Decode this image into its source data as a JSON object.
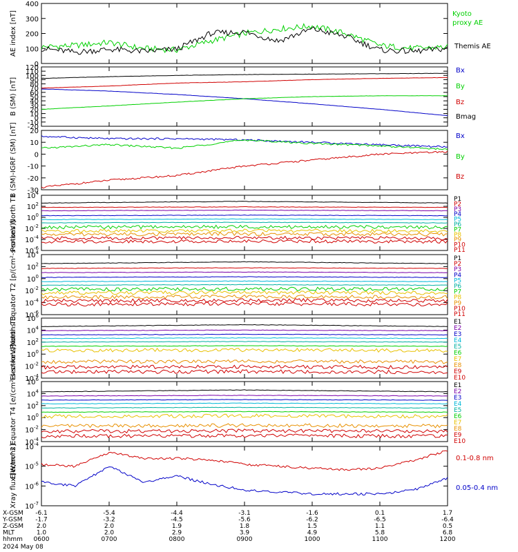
{
  "footer": {
    "date_label": "2024 May 08",
    "rows": [
      {
        "label": "X-GSM",
        "values": [
          "-6.1",
          "-5.4",
          "-4.4",
          "-3.1",
          "-1.6",
          "0.1",
          "1.7"
        ]
      },
      {
        "label": "Y-GSM",
        "values": [
          "-1.7",
          "-3.2",
          "-4.5",
          "-5.6",
          "-6.2",
          "-6.5",
          "-6.4"
        ]
      },
      {
        "label": "Z-GSM",
        "values": [
          "2.0",
          "2.0",
          "1.9",
          "1.8",
          "1.5",
          "1.1",
          "0.5"
        ]
      },
      {
        "label": "MLT",
        "values": [
          "1.0",
          "2.0",
          "2.9",
          "3.9",
          "4.9",
          "5.8",
          "6.8"
        ]
      },
      {
        "label": "hhmm",
        "values": [
          "0600",
          "0700",
          "0800",
          "0900",
          "1000",
          "1100",
          "1200"
        ]
      }
    ]
  },
  "chart_data": [
    {
      "type": "line",
      "ylabel": "AE index [nT]",
      "ylim": [
        0,
        400
      ],
      "ticks": [
        0,
        100,
        200,
        300,
        400
      ],
      "scale": "linear",
      "legend": [
        "Kyoto proxy AE",
        "Themis AE"
      ],
      "x": [
        "06:00",
        "06:30",
        "07:00",
        "07:30",
        "08:00",
        "08:30",
        "09:00",
        "09:30",
        "10:00",
        "10:30",
        "11:00",
        "11:30",
        "12:00"
      ],
      "series": [
        {
          "name": "Kyoto proxy AE",
          "color": "#00d000",
          "values": [
            110,
            120,
            140,
            100,
            90,
            150,
            200,
            230,
            250,
            200,
            120,
            100,
            110
          ]
        },
        {
          "name": "Themis AE",
          "color": "#000000",
          "values": [
            100,
            75,
            95,
            80,
            95,
            200,
            210,
            150,
            230,
            180,
            90,
            80,
            100
          ]
        }
      ]
    },
    {
      "type": "line",
      "ylabel": "B (SM) [nT]",
      "ylim": [
        -20,
        120
      ],
      "ticks": [
        -20,
        -10,
        0,
        10,
        20,
        30,
        40,
        50,
        60,
        70,
        80,
        90,
        100,
        110,
        120
      ],
      "scale": "linear",
      "legend": [
        "Bx",
        "By",
        "Bz",
        "Bmag"
      ],
      "x": [
        "06:00",
        "07:00",
        "08:00",
        "09:00",
        "10:00",
        "11:00",
        "12:00"
      ],
      "series": [
        {
          "name": "Bx",
          "color": "#0000c8",
          "values": [
            68,
            63,
            55,
            45,
            33,
            20,
            5
          ]
        },
        {
          "name": "By",
          "color": "#00d000",
          "values": [
            20,
            28,
            37,
            45,
            50,
            52,
            52
          ]
        },
        {
          "name": "Bz",
          "color": "#d00000",
          "values": [
            70,
            75,
            82,
            85,
            90,
            93,
            95
          ]
        },
        {
          "name": "Bmag",
          "color": "#000000",
          "values": [
            93,
            97,
            100,
            102,
            103,
            104,
            105
          ]
        }
      ]
    },
    {
      "type": "line",
      "ylabel": "B (SM)-IGRF (SM) [nT]",
      "ylim": [
        -30,
        20
      ],
      "ticks": [
        -30,
        -20,
        -10,
        0,
        10,
        20
      ],
      "scale": "linear",
      "legend": [
        "Bx",
        "By",
        "Bz"
      ],
      "x": [
        "06:00",
        "07:00",
        "08:00",
        "09:00",
        "10:00",
        "11:00",
        "12:00"
      ],
      "series": [
        {
          "name": "Bx",
          "color": "#0000c8",
          "values": [
            15,
            13,
            13,
            12,
            10,
            8,
            6
          ]
        },
        {
          "name": "By",
          "color": "#00d000",
          "values": [
            5,
            8,
            5,
            12,
            9,
            7,
            4
          ]
        },
        {
          "name": "Bz",
          "color": "#d00000",
          "values": [
            -28,
            -22,
            -18,
            -10,
            -5,
            0,
            2
          ]
        }
      ]
    },
    {
      "type": "line",
      "ylabel": "Protons North T1",
      "ylim": [
        -6,
        4
      ],
      "ticks": [
        -6,
        -4,
        -2,
        0,
        2,
        4
      ],
      "scale": "log",
      "legend": [
        "P1",
        "P2",
        "P3",
        "P4",
        "P5",
        "P6",
        "P7",
        "P8",
        "P9",
        "P10",
        "P11"
      ]
    },
    {
      "type": "line",
      "ylabel": "Protons Equator T2 [p/(cm²-s-sr-keV)]",
      "ylim": [
        -6,
        4
      ],
      "ticks": [
        -6,
        -4,
        -2,
        0,
        2,
        4
      ],
      "scale": "log",
      "legend": [
        "P1",
        "P2",
        "P3",
        "P4",
        "P5",
        "P6",
        "P7",
        "P8",
        "P9",
        "P10",
        "P11"
      ]
    },
    {
      "type": "line",
      "ylabel": "Electrons North T3",
      "ylim": [
        -4,
        6
      ],
      "ticks": [
        -4,
        -2,
        0,
        2,
        4,
        6
      ],
      "scale": "log",
      "legend": [
        "E1",
        "E2",
        "E3",
        "E4",
        "E5",
        "E6",
        "E7",
        "E8",
        "E9",
        "E10"
      ]
    },
    {
      "type": "line",
      "ylabel": "Electrons Equator T4 [e/(cm²-s-sr-keV)]",
      "ylim": [
        -4,
        6
      ],
      "ticks": [
        -4,
        -2,
        0,
        2,
        4,
        6
      ],
      "scale": "log",
      "legend": [
        "E1",
        "E2",
        "E3",
        "E4",
        "E5",
        "E6",
        "E7",
        "E8",
        "E9",
        "E10"
      ]
    },
    {
      "type": "line",
      "ylabel": "Xray flux [W/m^2]",
      "ylim": [
        -7,
        -4
      ],
      "ticks": [
        -7,
        -6,
        -5,
        -4
      ],
      "scale": "log",
      "legend": [
        "0.1-0.8 nm",
        "0.05-0.4 nm"
      ],
      "x": [
        "06:00",
        "06:30",
        "07:00",
        "07:30",
        "08:00",
        "08:30",
        "09:00",
        "09:30",
        "10:00",
        "10:30",
        "11:00",
        "11:30",
        "12:00"
      ],
      "series": [
        {
          "name": "0.1-0.8 nm",
          "color": "#d00000",
          "values": [
            -4.9,
            -5.0,
            -4.3,
            -4.6,
            -4.6,
            -4.7,
            -4.9,
            -5.0,
            -5.1,
            -5.2,
            -5.1,
            -4.7,
            -4.2
          ]
        },
        {
          "name": "0.05-0.4 nm",
          "color": "#0000c8",
          "values": [
            -5.8,
            -6.0,
            -5.0,
            -5.8,
            -5.5,
            -5.9,
            -6.2,
            -6.3,
            -6.4,
            -6.4,
            -6.4,
            -6.2,
            -5.6
          ]
        }
      ]
    }
  ],
  "flux_levels": {
    "protons_t1": [
      2.6,
      1.8,
      1.2,
      0.3,
      -0.4,
      -1.0,
      -1.8,
      -2.5,
      -3.1,
      -3.8,
      -4.4
    ],
    "protons_t2": [
      2.5,
      1.7,
      1.0,
      0.2,
      -0.5,
      -1.1,
      -1.8,
      -2.4,
      -3.1,
      -3.7,
      -4.3
    ],
    "electrons_t3": [
      4.6,
      3.9,
      3.2,
      2.6,
      2.0,
      1.3,
      0.6,
      -1.3,
      -2.2,
      -3.0
    ],
    "electrons_t4": [
      4.3,
      3.6,
      2.9,
      2.3,
      1.6,
      0.9,
      0.2,
      -1.4,
      -2.3,
      -3.1
    ]
  },
  "colors": {
    "black": "#000000",
    "red": "#d00000",
    "green": "#00d000",
    "blue": "#0000c8",
    "purple": "#7a00a8",
    "cyan": "#00b8d8",
    "teal": "#00b0a0",
    "yellow": "#e8c000",
    "orange": "#e89000"
  }
}
